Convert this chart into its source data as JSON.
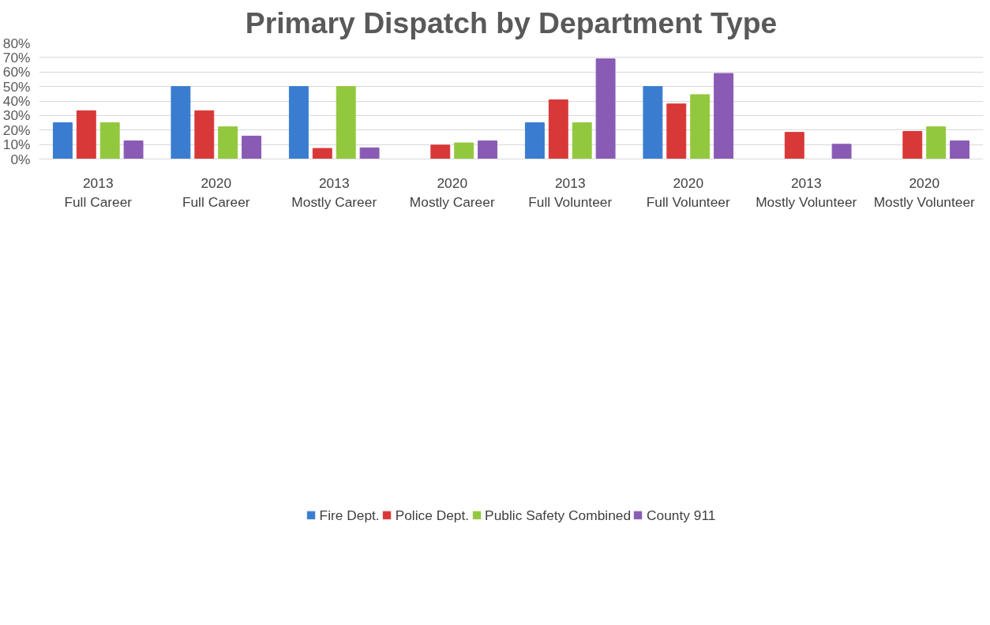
{
  "chart_data": {
    "type": "bar",
    "title": "Primary Dispatch by Department Type",
    "categories": [
      "2013\nFull Career",
      "2020\nFull Career",
      "2013\nMostly Career",
      "2020\nMostly Career",
      "2013\nFull Volunteer",
      "2020\nFull Volunteer",
      "2013\nMostly Volunteer",
      "2020\nMostly Volunteer"
    ],
    "series": [
      {
        "name": "Fire Dept.",
        "color": "#3a7dd0",
        "values": [
          25,
          50,
          50,
          0,
          25,
          50,
          0,
          0
        ]
      },
      {
        "name": "Police Dept.",
        "color": "#d93838",
        "values": [
          33.3,
          33.3,
          7.3,
          9.6,
          40.8,
          38,
          18.4,
          19
        ]
      },
      {
        "name": "Public Safety Combined",
        "color": "#92c83e",
        "values": [
          25,
          22.2,
          50,
          11.1,
          25,
          44.4,
          0,
          22.2
        ]
      },
      {
        "name": "County 911",
        "color": "#8a5bb5",
        "values": [
          12.5,
          15.8,
          7.7,
          12.5,
          69.1,
          59,
          10.2,
          12.5
        ]
      }
    ],
    "ylim": [
      0,
      80
    ],
    "yticks": [
      {
        "value": 0,
        "label": "0%"
      },
      {
        "value": 10,
        "label": "10%"
      },
      {
        "value": 20,
        "label": "20%"
      },
      {
        "value": 30,
        "label": "30%"
      },
      {
        "value": 40,
        "label": "40%"
      },
      {
        "value": 50,
        "label": "50%"
      },
      {
        "value": 60,
        "label": "60%"
      },
      {
        "value": 70,
        "label": "70%"
      },
      {
        "value": 80,
        "label": "80%"
      }
    ],
    "grid": "y",
    "legend": "bottom"
  }
}
